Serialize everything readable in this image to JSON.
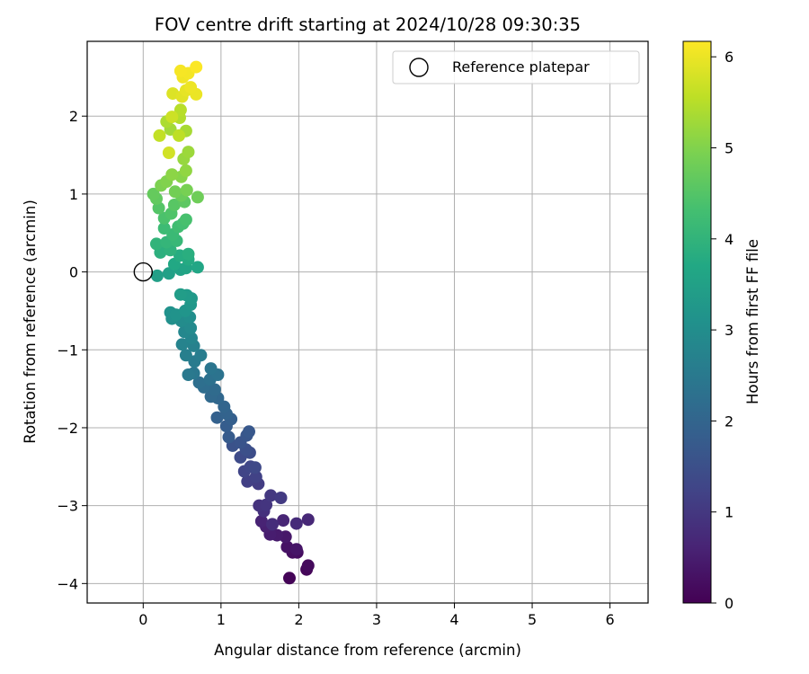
{
  "chart_data": {
    "type": "scatter",
    "title": "FOV centre drift starting at 2024/10/28 09:30:35",
    "xlabel": "Angular distance from reference (arcmin)",
    "ylabel": "Rotation from reference (arcmin)",
    "xlim": [
      -0.72,
      6.49
    ],
    "ylim": [
      -4.25,
      2.96
    ],
    "xticks": [
      0,
      1,
      2,
      3,
      4,
      5,
      6
    ],
    "yticks": [
      -4,
      -3,
      -2,
      -1,
      0,
      1,
      2
    ],
    "xtick_labels": [
      "0",
      "1",
      "2",
      "3",
      "4",
      "5",
      "6"
    ],
    "ytick_labels": [
      "−4",
      "−3",
      "−2",
      "−1",
      "0",
      "1",
      "2"
    ],
    "grid": true,
    "legend": {
      "placement": "top-right",
      "entries": [
        {
          "label": "Reference platepar",
          "marker": "open-circle",
          "color": "#000000"
        }
      ]
    },
    "reference_point": {
      "x": 0,
      "y": 0
    },
    "colorbar": {
      "label": "Hours from first FF file",
      "range": [
        0,
        6.17
      ],
      "ticks": [
        0,
        1,
        2,
        3,
        4,
        5,
        6
      ],
      "tick_labels": [
        "0",
        "1",
        "2",
        "3",
        "4",
        "5",
        "6"
      ],
      "colormap": "viridis"
    },
    "points": [
      [
        1.88,
        -3.93,
        0.05
      ],
      [
        2.1,
        -3.82,
        0.1
      ],
      [
        2.12,
        -3.77,
        0.15
      ],
      [
        1.98,
        -3.6,
        0.2
      ],
      [
        1.92,
        -3.6,
        0.25
      ],
      [
        1.85,
        -3.53,
        0.3
      ],
      [
        1.97,
        -3.56,
        0.35
      ],
      [
        1.83,
        -3.4,
        0.4
      ],
      [
        1.72,
        -3.38,
        0.45
      ],
      [
        1.63,
        -3.37,
        0.5
      ],
      [
        1.58,
        -3.27,
        0.55
      ],
      [
        1.52,
        -3.2,
        0.6
      ],
      [
        1.8,
        -3.19,
        0.65
      ],
      [
        2.12,
        -3.18,
        0.7
      ],
      [
        1.97,
        -3.23,
        0.75
      ],
      [
        1.66,
        -3.24,
        0.8
      ],
      [
        1.55,
        -3.07,
        0.85
      ],
      [
        1.49,
        -3.0,
        0.9
      ],
      [
        1.58,
        -2.99,
        0.95
      ],
      [
        1.64,
        -2.87,
        1.0
      ],
      [
        1.77,
        -2.9,
        1.05
      ],
      [
        1.48,
        -2.72,
        1.1
      ],
      [
        1.34,
        -2.69,
        1.15
      ],
      [
        1.45,
        -2.63,
        1.2
      ],
      [
        1.3,
        -2.56,
        1.25
      ],
      [
        1.38,
        -2.5,
        1.3
      ],
      [
        1.44,
        -2.51,
        1.35
      ],
      [
        1.25,
        -2.38,
        1.4
      ],
      [
        1.37,
        -2.32,
        1.45
      ],
      [
        1.32,
        -2.28,
        1.5
      ],
      [
        1.15,
        -2.23,
        1.55
      ],
      [
        1.25,
        -2.19,
        1.6
      ],
      [
        1.33,
        -2.1,
        1.65
      ],
      [
        1.36,
        -2.05,
        1.7
      ],
      [
        1.1,
        -2.12,
        1.75
      ],
      [
        1.07,
        -1.98,
        1.8
      ],
      [
        1.13,
        -1.89,
        1.85
      ],
      [
        0.95,
        -1.87,
        1.9
      ],
      [
        1.07,
        -1.82,
        1.95
      ],
      [
        1.04,
        -1.73,
        2.0
      ],
      [
        0.96,
        -1.62,
        2.05
      ],
      [
        0.87,
        -1.6,
        2.1
      ],
      [
        0.92,
        -1.51,
        2.15
      ],
      [
        0.78,
        -1.48,
        2.2
      ],
      [
        0.72,
        -1.42,
        2.25
      ],
      [
        0.86,
        -1.38,
        2.3
      ],
      [
        0.96,
        -1.32,
        2.35
      ],
      [
        0.87,
        -1.24,
        2.4
      ],
      [
        0.65,
        -1.3,
        2.45
      ],
      [
        0.58,
        -1.32,
        2.5
      ],
      [
        0.66,
        -1.15,
        2.55
      ],
      [
        0.74,
        -1.07,
        2.6
      ],
      [
        0.55,
        -1.07,
        2.65
      ],
      [
        0.65,
        -0.95,
        2.7
      ],
      [
        0.5,
        -0.93,
        2.75
      ],
      [
        0.62,
        -0.85,
        2.8
      ],
      [
        0.53,
        -0.77,
        2.85
      ],
      [
        0.61,
        -0.72,
        2.9
      ],
      [
        0.49,
        -0.63,
        2.95
      ],
      [
        0.6,
        -0.58,
        3.0
      ],
      [
        0.37,
        -0.6,
        3.05
      ],
      [
        0.35,
        -0.52,
        3.1
      ],
      [
        0.42,
        -0.55,
        3.15
      ],
      [
        0.54,
        -0.5,
        3.2
      ],
      [
        0.61,
        -0.42,
        3.25
      ],
      [
        0.62,
        -0.34,
        3.3
      ],
      [
        0.56,
        -0.3,
        3.35
      ],
      [
        0.48,
        -0.29,
        3.4
      ],
      [
        0.18,
        -0.05,
        3.45
      ],
      [
        0.33,
        -0.02,
        3.5
      ],
      [
        0.48,
        0.03,
        3.55
      ],
      [
        0.55,
        0.05,
        3.6
      ],
      [
        0.7,
        0.06,
        3.65
      ],
      [
        0.4,
        0.1,
        3.7
      ],
      [
        0.58,
        0.16,
        3.75
      ],
      [
        0.47,
        0.21,
        3.8
      ],
      [
        0.58,
        0.23,
        3.85
      ],
      [
        0.22,
        0.25,
        3.9
      ],
      [
        0.35,
        0.28,
        3.95
      ],
      [
        0.17,
        0.36,
        4.0
      ],
      [
        0.3,
        0.38,
        4.05
      ],
      [
        0.43,
        0.4,
        4.1
      ],
      [
        0.38,
        0.48,
        4.15
      ],
      [
        0.27,
        0.56,
        4.2
      ],
      [
        0.45,
        0.58,
        4.25
      ],
      [
        0.51,
        0.62,
        4.3
      ],
      [
        0.55,
        0.67,
        4.35
      ],
      [
        0.27,
        0.69,
        4.4
      ],
      [
        0.36,
        0.75,
        4.45
      ],
      [
        0.2,
        0.82,
        4.5
      ],
      [
        0.4,
        0.86,
        4.55
      ],
      [
        0.53,
        0.9,
        4.6
      ],
      [
        0.17,
        0.94,
        4.65
      ],
      [
        0.13,
        1.0,
        4.7
      ],
      [
        0.49,
        0.98,
        4.75
      ],
      [
        0.7,
        0.96,
        4.8
      ],
      [
        0.41,
        1.03,
        4.85
      ],
      [
        0.56,
        1.05,
        4.9
      ],
      [
        0.23,
        1.11,
        4.95
      ],
      [
        0.3,
        1.16,
        5.0
      ],
      [
        0.49,
        1.22,
        5.05
      ],
      [
        0.37,
        1.25,
        5.1
      ],
      [
        0.55,
        1.3,
        5.15
      ],
      [
        0.52,
        1.45,
        5.2
      ],
      [
        0.58,
        1.54,
        5.25
      ],
      [
        0.35,
        1.83,
        5.3
      ],
      [
        0.55,
        1.81,
        5.35
      ],
      [
        0.3,
        1.93,
        5.4
      ],
      [
        0.47,
        1.98,
        5.45
      ],
      [
        0.48,
        2.08,
        5.5
      ],
      [
        0.46,
        1.75,
        5.55
      ],
      [
        0.21,
        1.75,
        5.6
      ],
      [
        0.37,
        1.99,
        5.7
      ],
      [
        0.33,
        1.53,
        5.75
      ],
      [
        0.38,
        2.29,
        5.85
      ],
      [
        0.5,
        2.25,
        5.9
      ],
      [
        0.55,
        2.33,
        5.95
      ],
      [
        0.68,
        2.28,
        6.0
      ],
      [
        0.61,
        2.37,
        6.02
      ],
      [
        0.51,
        2.5,
        6.05
      ],
      [
        0.58,
        2.55,
        6.08
      ],
      [
        0.48,
        2.58,
        6.1
      ],
      [
        0.68,
        2.63,
        6.15
      ]
    ]
  }
}
